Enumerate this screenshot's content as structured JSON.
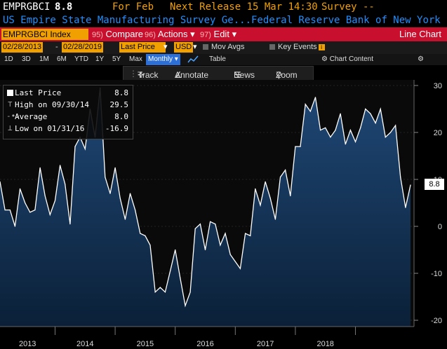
{
  "header": {
    "ticker": "EMPRGBCI",
    "value": "8.8",
    "period": "For Feb",
    "next_release": "Next Release 15 Mar 14:30",
    "survey": "Survey --",
    "subtitle": "US Empire State Manufacturing Survey Ge...Federal Reserve Bank of New York"
  },
  "toolbar": {
    "index_field": "EMPRGBCI Index",
    "compare_num": "95)",
    "compare_label": "Compare",
    "actions_num": "96)",
    "actions_label": "Actions",
    "edit_num": "97)",
    "edit_label": "Edit",
    "view_label": "Line Chart"
  },
  "settings": {
    "start_date": "02/28/2013",
    "end_date": "02/28/2019",
    "field": "Last Price",
    "currency": "USD",
    "mov_avgs": "Mov Avgs",
    "key_events": "Key Events",
    "key_events_icon": "i"
  },
  "periods": [
    "1D",
    "3D",
    "1M",
    "6M",
    "YTD",
    "1Y",
    "5Y",
    "Max"
  ],
  "frequency": "Monthly",
  "table_label": "Table",
  "chart_content_label": "Chart Content",
  "tools": {
    "track": "Track",
    "annotate": "Annotate",
    "news": "News",
    "zoom": "Zoom"
  },
  "legend": {
    "last_price_label": "Last Price",
    "last_price_value": "8.8",
    "high_label": "High on 09/30/14",
    "high_value": "29.5",
    "average_label": "Average",
    "average_value": "8.0",
    "low_label": "Low on 01/31/16",
    "low_value": "-16.9"
  },
  "colors": {
    "accent_orange": "#f0a000",
    "toolbar_red": "#c8102e",
    "line": "#ffffff",
    "fill": "#1c3d63",
    "blue_text": "#1e90ff",
    "frequency_highlight": "#2c6fd6"
  },
  "chart_data": {
    "type": "area",
    "x_axis_labels": [
      "2013",
      "2014",
      "2015",
      "2016",
      "2017",
      "2018"
    ],
    "y_ticks": [
      -20,
      -10,
      0,
      10,
      20,
      30
    ],
    "ylim": [
      -21,
      31
    ],
    "last_value_label": "8.8",
    "series": [
      {
        "values": [
          9.5,
          3.5,
          3.5,
          0,
          8,
          5,
          3,
          3.5,
          12.5,
          6.5,
          2.5,
          5.5,
          13,
          9,
          0.5,
          17,
          19,
          16.5,
          25,
          19,
          29.5,
          10.5,
          7,
          12.5,
          6,
          1.5,
          7,
          3.5,
          -1.5,
          -2,
          -4,
          -14,
          -13,
          -14,
          -9.5,
          -5,
          -11,
          -16.9,
          -14,
          -0.5,
          0.5,
          -5,
          1,
          0.5,
          -4,
          -1.5,
          -6,
          -7.5,
          -9,
          -1.5,
          -2,
          8,
          4.5,
          9.5,
          6,
          1.5,
          10.5,
          12,
          6.5,
          17,
          17,
          26,
          24.5,
          27.5,
          20.5,
          21,
          19,
          20.5,
          24,
          17.5,
          20.5,
          18,
          21,
          25,
          24,
          22,
          25,
          19,
          20,
          21.5,
          10.5,
          4,
          8.8
        ]
      }
    ]
  }
}
